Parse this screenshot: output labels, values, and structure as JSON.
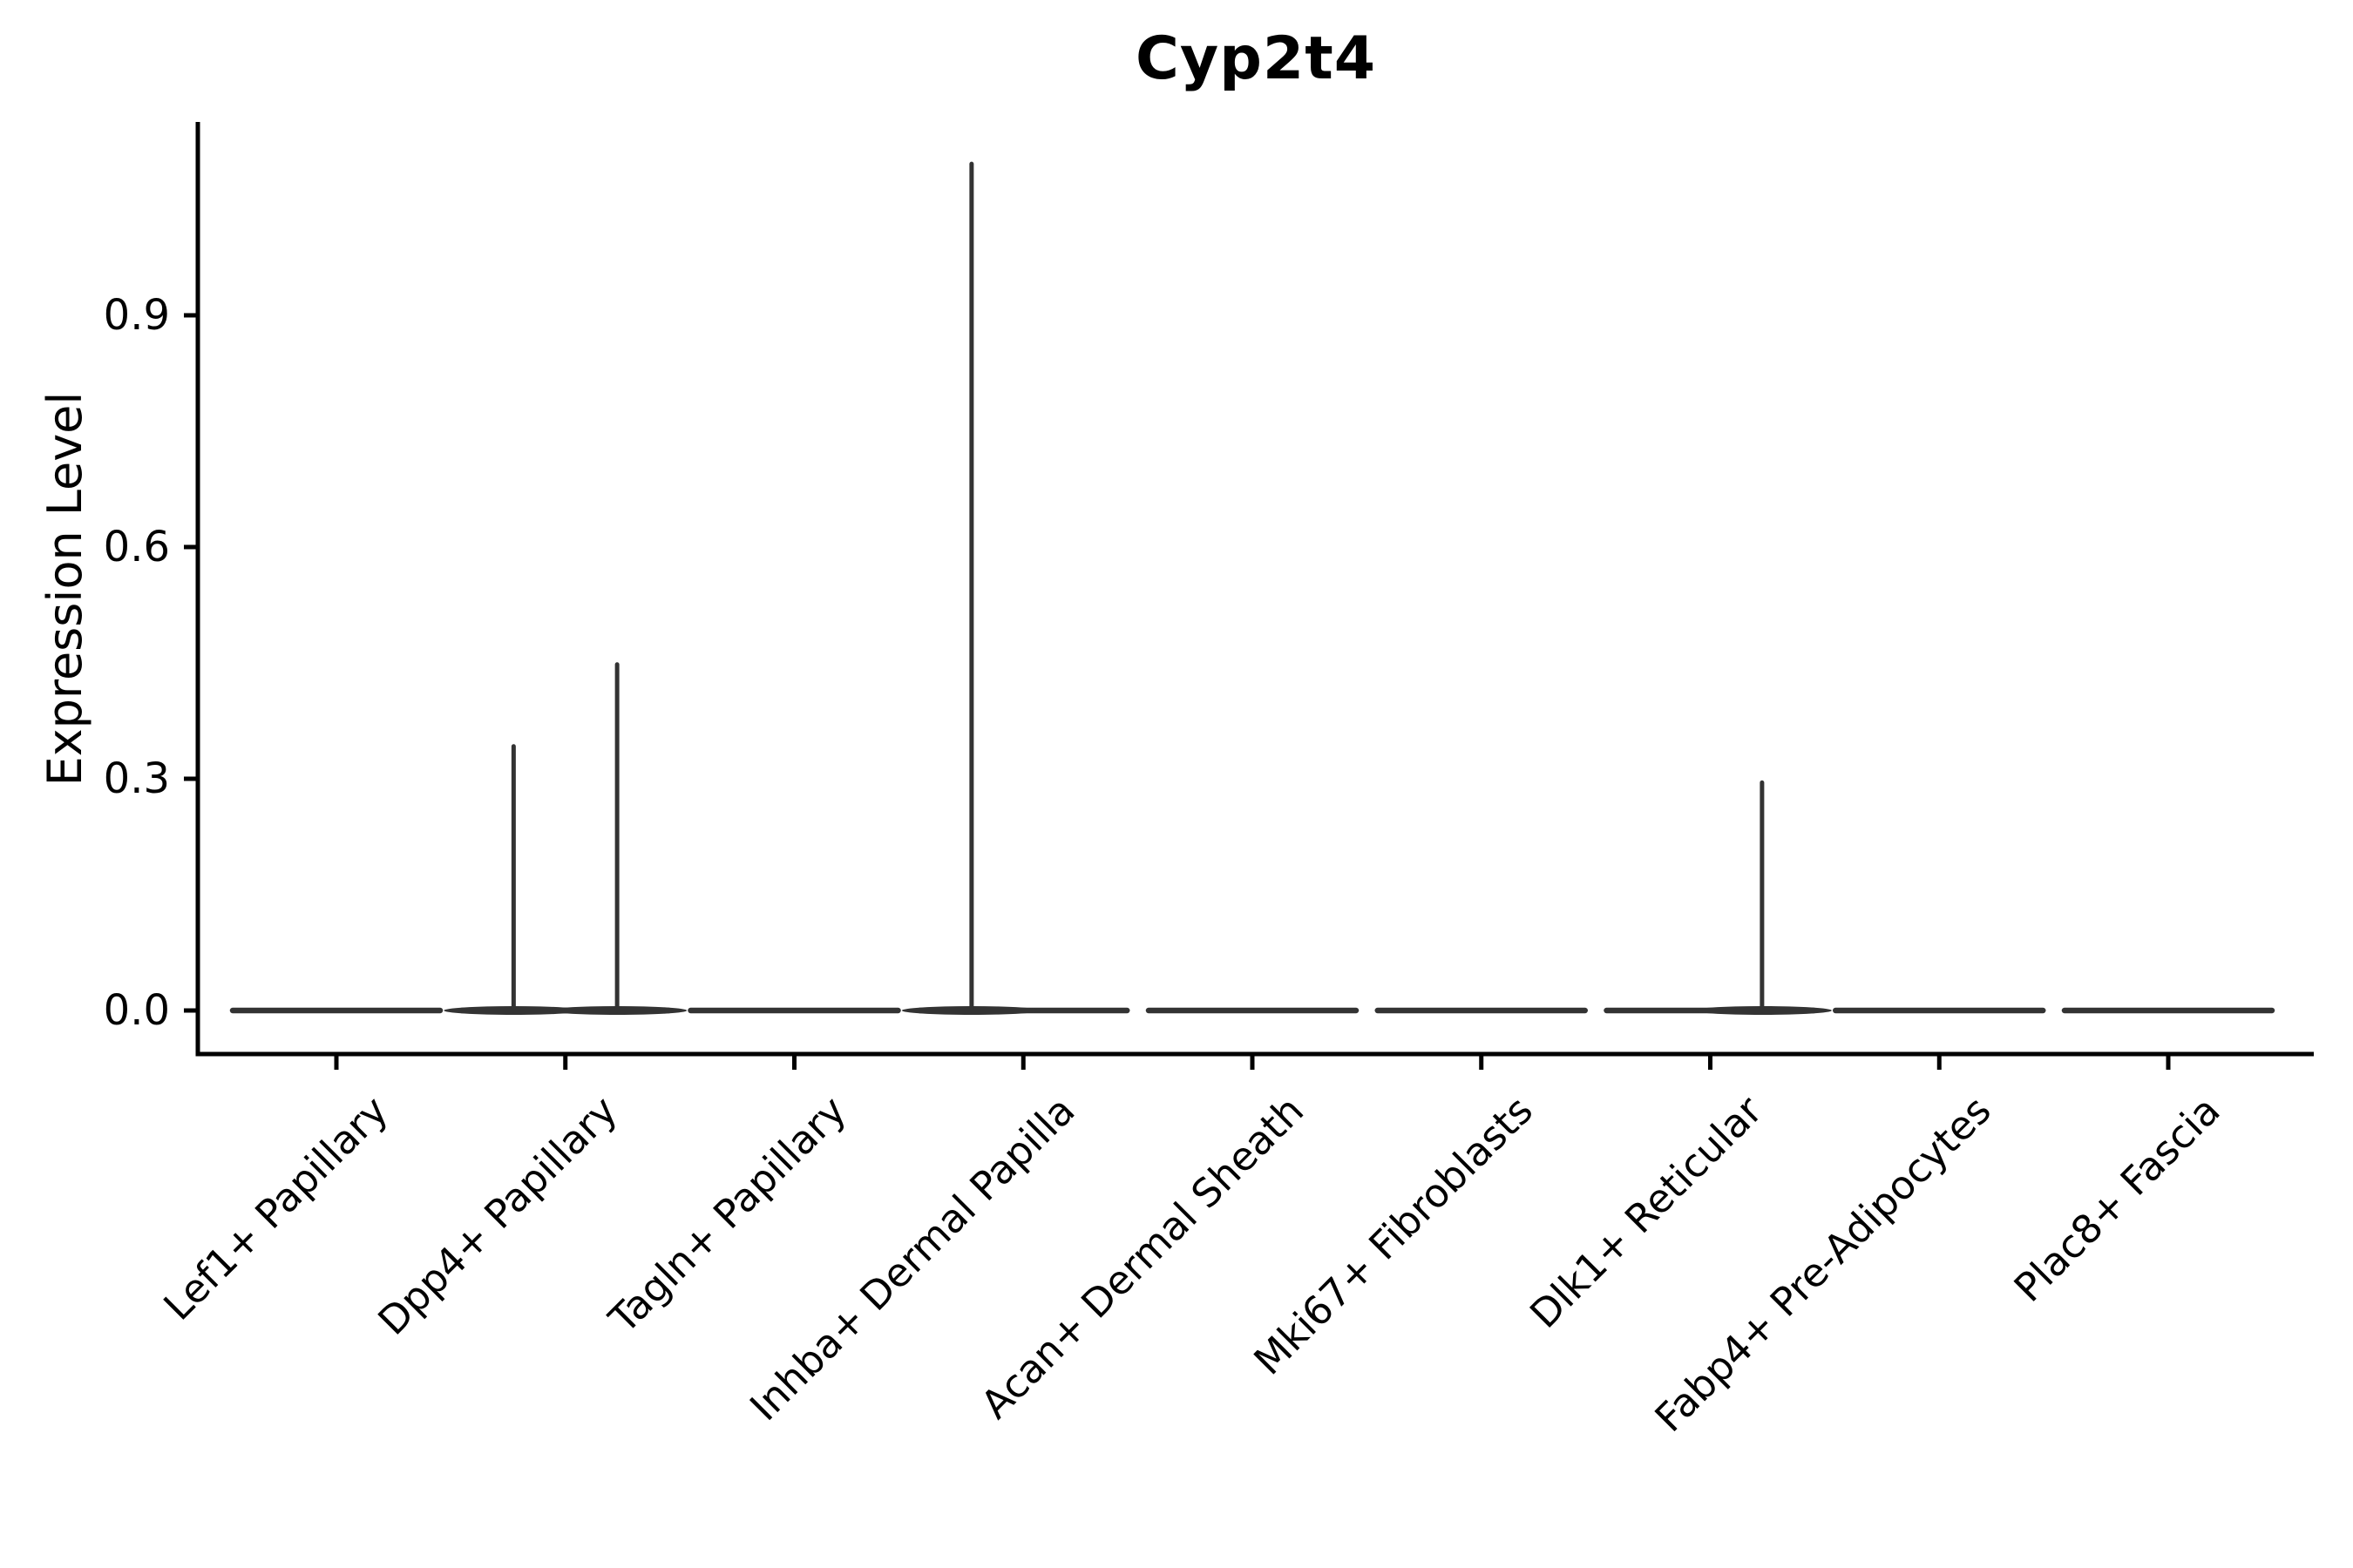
{
  "chart_data": {
    "type": "violin",
    "title": "Cyp2t4",
    "ylabel": "Expression Level",
    "xlabel": "",
    "legend": "none",
    "grid": false,
    "spines": [
      "left",
      "bottom"
    ],
    "ylim": [
      0,
      1.15
    ],
    "y_ticks": [
      "0.0",
      "0.3",
      "0.6",
      "0.9"
    ],
    "y_tick_values": [
      0.0,
      0.3,
      0.6,
      0.9
    ],
    "categories": [
      "Lef1+ Papillary",
      "Dpp4+ Papillary",
      "Tagln+ Papillary",
      "Inhba+ Dermal Papilla",
      "Acan+ Dermal Sheath",
      "Mki67+ Fibroblasts",
      "Dlk1+ Reticular",
      "Fabp4+ Pre-Adipocytes",
      "Plac8+ Fascia"
    ],
    "violins": [
      {
        "category": "Lef1+ Papillary",
        "baseline": 0,
        "spikes": []
      },
      {
        "category": "Dpp4+ Papillary",
        "baseline": 0,
        "spikes": [
          {
            "offset": -0.226,
            "value": 0.342
          },
          {
            "offset": 0.226,
            "value": 0.448
          }
        ]
      },
      {
        "category": "Tagln+ Papillary",
        "baseline": 0,
        "spikes": []
      },
      {
        "category": "Inhba+ Dermal Papilla",
        "baseline": 0,
        "spikes": [
          {
            "offset": -0.226,
            "value": 1.096
          }
        ]
      },
      {
        "category": "Acan+ Dermal Sheath",
        "baseline": 0,
        "spikes": []
      },
      {
        "category": "Mki67+ Fibroblasts",
        "baseline": 0,
        "spikes": []
      },
      {
        "category": "Dlk1+ Reticular",
        "baseline": 0,
        "spikes": [
          {
            "offset": 0.226,
            "value": 0.295
          }
        ]
      },
      {
        "category": "Fabp4+ Pre-Adipocytes",
        "baseline": 0,
        "spikes": []
      },
      {
        "category": "Plac8+ Fascia",
        "baseline": 0,
        "spikes": []
      }
    ],
    "colors": {
      "violin_line": "#333333",
      "axis": "#000000",
      "text": "#000000",
      "background": "#ffffff"
    }
  }
}
